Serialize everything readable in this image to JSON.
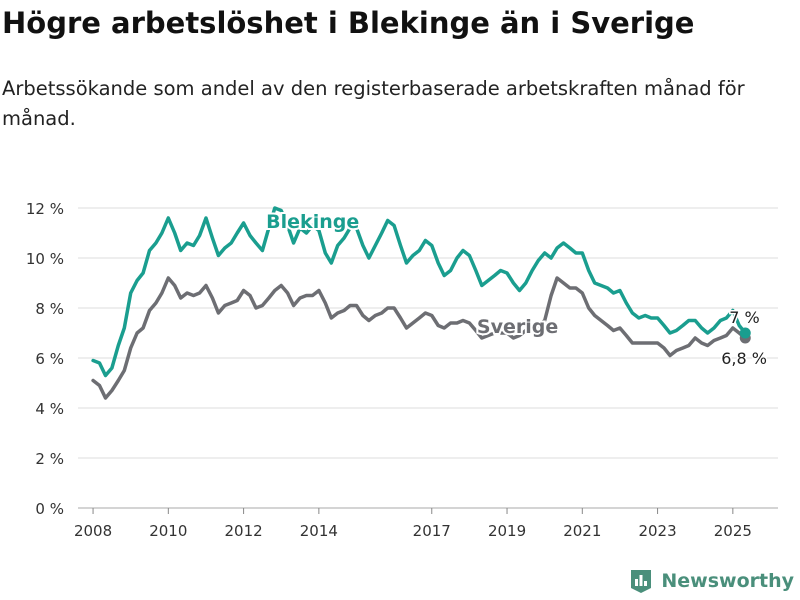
{
  "title": "Högre arbetslöshet i Blekinge än i Sverige",
  "subtitle": "Arbetssökande som andel av den registerbaserade arbetskraften månad för månad.",
  "brand": "Newsworthy",
  "colors": {
    "blekinge": "#1a9e8f",
    "sverige": "#6d6e73",
    "grid": "#dddddd"
  },
  "chart_data": {
    "type": "line",
    "xlim": [
      2007.6,
      2026.2
    ],
    "ylim": [
      0,
      12
    ],
    "y_ticks": [
      0,
      2,
      4,
      6,
      8,
      10,
      12
    ],
    "y_tick_labels": [
      "0 %",
      "2 %",
      "4 %",
      "6 %",
      "8 %",
      "10 %",
      "12 %"
    ],
    "x_ticks": [
      2008,
      2010,
      2012,
      2014,
      2017,
      2019,
      2021,
      2023,
      2025
    ],
    "x_tick_labels": [
      "2008",
      "2010",
      "2012",
      "2014",
      "2017",
      "2019",
      "2021",
      "2023",
      "2025"
    ],
    "grid": true,
    "series": [
      {
        "name": "Blekinge",
        "color": "#1a9e8f",
        "end_label": "7 %",
        "points": [
          [
            2008.0,
            5.9
          ],
          [
            2008.17,
            5.8
          ],
          [
            2008.33,
            5.3
          ],
          [
            2008.5,
            5.6
          ],
          [
            2008.67,
            6.5
          ],
          [
            2008.83,
            7.2
          ],
          [
            2009.0,
            8.6
          ],
          [
            2009.17,
            9.1
          ],
          [
            2009.33,
            9.4
          ],
          [
            2009.5,
            10.3
          ],
          [
            2009.67,
            10.6
          ],
          [
            2009.83,
            11.0
          ],
          [
            2010.0,
            11.6
          ],
          [
            2010.17,
            11.0
          ],
          [
            2010.33,
            10.3
          ],
          [
            2010.5,
            10.6
          ],
          [
            2010.67,
            10.5
          ],
          [
            2010.83,
            10.9
          ],
          [
            2011.0,
            11.6
          ],
          [
            2011.17,
            10.8
          ],
          [
            2011.33,
            10.1
          ],
          [
            2011.5,
            10.4
          ],
          [
            2011.67,
            10.6
          ],
          [
            2011.83,
            11.0
          ],
          [
            2012.0,
            11.4
          ],
          [
            2012.17,
            10.9
          ],
          [
            2012.33,
            10.6
          ],
          [
            2012.5,
            10.3
          ],
          [
            2012.67,
            11.2
          ],
          [
            2012.83,
            12.0
          ],
          [
            2013.0,
            11.9
          ],
          [
            2013.17,
            11.3
          ],
          [
            2013.33,
            10.6
          ],
          [
            2013.5,
            11.2
          ],
          [
            2013.67,
            11.0
          ],
          [
            2013.83,
            11.3
          ],
          [
            2014.0,
            11.1
          ],
          [
            2014.17,
            10.2
          ],
          [
            2014.33,
            9.8
          ],
          [
            2014.5,
            10.5
          ],
          [
            2014.67,
            10.8
          ],
          [
            2014.83,
            11.2
          ],
          [
            2015.0,
            11.2
          ],
          [
            2015.17,
            10.5
          ],
          [
            2015.33,
            10.0
          ],
          [
            2015.5,
            10.5
          ],
          [
            2015.67,
            11.0
          ],
          [
            2015.83,
            11.5
          ],
          [
            2016.0,
            11.3
          ],
          [
            2016.17,
            10.5
          ],
          [
            2016.33,
            9.8
          ],
          [
            2016.5,
            10.1
          ],
          [
            2016.67,
            10.3
          ],
          [
            2016.83,
            10.7
          ],
          [
            2017.0,
            10.5
          ],
          [
            2017.17,
            9.8
          ],
          [
            2017.33,
            9.3
          ],
          [
            2017.5,
            9.5
          ],
          [
            2017.67,
            10.0
          ],
          [
            2017.83,
            10.3
          ],
          [
            2018.0,
            10.1
          ],
          [
            2018.17,
            9.5
          ],
          [
            2018.33,
            8.9
          ],
          [
            2018.5,
            9.1
          ],
          [
            2018.67,
            9.3
          ],
          [
            2018.83,
            9.5
          ],
          [
            2019.0,
            9.4
          ],
          [
            2019.17,
            9.0
          ],
          [
            2019.33,
            8.7
          ],
          [
            2019.5,
            9.0
          ],
          [
            2019.67,
            9.5
          ],
          [
            2019.83,
            9.9
          ],
          [
            2020.0,
            10.2
          ],
          [
            2020.17,
            10.0
          ],
          [
            2020.33,
            10.4
          ],
          [
            2020.5,
            10.6
          ],
          [
            2020.67,
            10.4
          ],
          [
            2020.83,
            10.2
          ],
          [
            2021.0,
            10.2
          ],
          [
            2021.17,
            9.5
          ],
          [
            2021.33,
            9.0
          ],
          [
            2021.5,
            8.9
          ],
          [
            2021.67,
            8.8
          ],
          [
            2021.83,
            8.6
          ],
          [
            2022.0,
            8.7
          ],
          [
            2022.17,
            8.2
          ],
          [
            2022.33,
            7.8
          ],
          [
            2022.5,
            7.6
          ],
          [
            2022.67,
            7.7
          ],
          [
            2022.83,
            7.6
          ],
          [
            2023.0,
            7.6
          ],
          [
            2023.17,
            7.3
          ],
          [
            2023.33,
            7.0
          ],
          [
            2023.5,
            7.1
          ],
          [
            2023.67,
            7.3
          ],
          [
            2023.83,
            7.5
          ],
          [
            2024.0,
            7.5
          ],
          [
            2024.17,
            7.2
          ],
          [
            2024.33,
            7.0
          ],
          [
            2024.5,
            7.2
          ],
          [
            2024.67,
            7.5
          ],
          [
            2024.83,
            7.6
          ],
          [
            2025.0,
            7.9
          ],
          [
            2025.17,
            7.3
          ],
          [
            2025.33,
            7.0
          ]
        ]
      },
      {
        "name": "Sverige",
        "color": "#6d6e73",
        "end_label": "6,8 %",
        "points": [
          [
            2008.0,
            5.1
          ],
          [
            2008.17,
            4.9
          ],
          [
            2008.33,
            4.4
          ],
          [
            2008.5,
            4.7
          ],
          [
            2008.67,
            5.1
          ],
          [
            2008.83,
            5.5
          ],
          [
            2009.0,
            6.4
          ],
          [
            2009.17,
            7.0
          ],
          [
            2009.33,
            7.2
          ],
          [
            2009.5,
            7.9
          ],
          [
            2009.67,
            8.2
          ],
          [
            2009.83,
            8.6
          ],
          [
            2010.0,
            9.2
          ],
          [
            2010.17,
            8.9
          ],
          [
            2010.33,
            8.4
          ],
          [
            2010.5,
            8.6
          ],
          [
            2010.67,
            8.5
          ],
          [
            2010.83,
            8.6
          ],
          [
            2011.0,
            8.9
          ],
          [
            2011.17,
            8.4
          ],
          [
            2011.33,
            7.8
          ],
          [
            2011.5,
            8.1
          ],
          [
            2011.67,
            8.2
          ],
          [
            2011.83,
            8.3
          ],
          [
            2012.0,
            8.7
          ],
          [
            2012.17,
            8.5
          ],
          [
            2012.33,
            8.0
          ],
          [
            2012.5,
            8.1
          ],
          [
            2012.67,
            8.4
          ],
          [
            2012.83,
            8.7
          ],
          [
            2013.0,
            8.9
          ],
          [
            2013.17,
            8.6
          ],
          [
            2013.33,
            8.1
          ],
          [
            2013.5,
            8.4
          ],
          [
            2013.67,
            8.5
          ],
          [
            2013.83,
            8.5
          ],
          [
            2014.0,
            8.7
          ],
          [
            2014.17,
            8.2
          ],
          [
            2014.33,
            7.6
          ],
          [
            2014.5,
            7.8
          ],
          [
            2014.67,
            7.9
          ],
          [
            2014.83,
            8.1
          ],
          [
            2015.0,
            8.1
          ],
          [
            2015.17,
            7.7
          ],
          [
            2015.33,
            7.5
          ],
          [
            2015.5,
            7.7
          ],
          [
            2015.67,
            7.8
          ],
          [
            2015.83,
            8.0
          ],
          [
            2016.0,
            8.0
          ],
          [
            2016.17,
            7.6
          ],
          [
            2016.33,
            7.2
          ],
          [
            2016.5,
            7.4
          ],
          [
            2016.67,
            7.6
          ],
          [
            2016.83,
            7.8
          ],
          [
            2017.0,
            7.7
          ],
          [
            2017.17,
            7.3
          ],
          [
            2017.33,
            7.2
          ],
          [
            2017.5,
            7.4
          ],
          [
            2017.67,
            7.4
          ],
          [
            2017.83,
            7.5
          ],
          [
            2018.0,
            7.4
          ],
          [
            2018.17,
            7.1
          ],
          [
            2018.33,
            6.8
          ],
          [
            2018.5,
            6.9
          ],
          [
            2018.67,
            7.0
          ],
          [
            2018.83,
            7.0
          ],
          [
            2019.0,
            7.0
          ],
          [
            2019.17,
            6.8
          ],
          [
            2019.33,
            6.9
          ],
          [
            2019.5,
            7.1
          ],
          [
            2019.67,
            7.2
          ],
          [
            2019.83,
            7.3
          ],
          [
            2020.0,
            7.5
          ],
          [
            2020.17,
            8.5
          ],
          [
            2020.33,
            9.2
          ],
          [
            2020.5,
            9.0
          ],
          [
            2020.67,
            8.8
          ],
          [
            2020.83,
            8.8
          ],
          [
            2021.0,
            8.6
          ],
          [
            2021.17,
            8.0
          ],
          [
            2021.33,
            7.7
          ],
          [
            2021.5,
            7.5
          ],
          [
            2021.67,
            7.3
          ],
          [
            2021.83,
            7.1
          ],
          [
            2022.0,
            7.2
          ],
          [
            2022.17,
            6.9
          ],
          [
            2022.33,
            6.6
          ],
          [
            2022.5,
            6.6
          ],
          [
            2022.67,
            6.6
          ],
          [
            2022.83,
            6.6
          ],
          [
            2023.0,
            6.6
          ],
          [
            2023.17,
            6.4
          ],
          [
            2023.33,
            6.1
          ],
          [
            2023.5,
            6.3
          ],
          [
            2023.67,
            6.4
          ],
          [
            2023.83,
            6.5
          ],
          [
            2024.0,
            6.8
          ],
          [
            2024.17,
            6.6
          ],
          [
            2024.33,
            6.5
          ],
          [
            2024.5,
            6.7
          ],
          [
            2024.67,
            6.8
          ],
          [
            2024.83,
            6.9
          ],
          [
            2025.0,
            7.2
          ],
          [
            2025.17,
            7.0
          ],
          [
            2025.33,
            6.8
          ]
        ]
      }
    ]
  }
}
